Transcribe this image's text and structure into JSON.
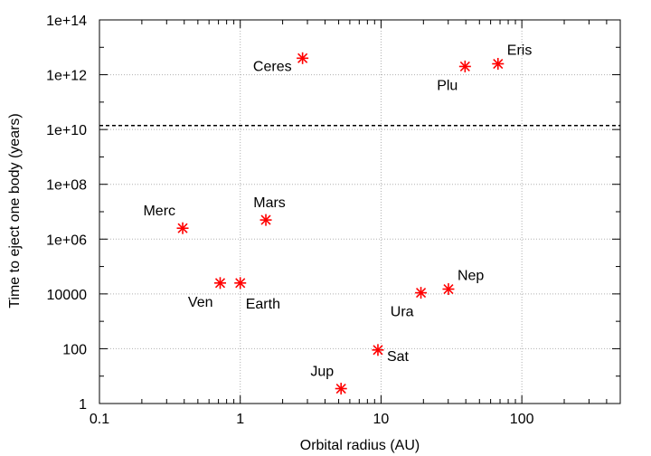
{
  "chart_data": {
    "type": "scatter",
    "title": "",
    "xlabel": "Orbital radius (AU)",
    "ylabel": "Time to eject one body (years)",
    "x_scale": "log",
    "y_scale": "log",
    "xlim": [
      0.1,
      500
    ],
    "ylim": [
      1,
      100000000000000.0
    ],
    "grid": true,
    "legend": "none",
    "x_ticks": [
      {
        "value": 0.1,
        "label": "0.1"
      },
      {
        "value": 1,
        "label": "1"
      },
      {
        "value": 10,
        "label": "10"
      },
      {
        "value": 100,
        "label": "100"
      }
    ],
    "y_ticks": [
      {
        "value": 1,
        "label": "1"
      },
      {
        "value": 100,
        "label": "100"
      },
      {
        "value": 10000,
        "label": "10000"
      },
      {
        "value": 1000000.0,
        "label": "1e+06"
      },
      {
        "value": 100000000.0,
        "label": "1e+08"
      },
      {
        "value": 10000000000.0,
        "label": "1e+10"
      },
      {
        "value": 1000000000000.0,
        "label": "1e+12"
      },
      {
        "value": 100000000000000.0,
        "label": "1e+14"
      }
    ],
    "reference_line": {
      "y": 14000000000.0,
      "style": "dashed",
      "color": "#000000"
    },
    "point_color": "#ff0000",
    "series": [
      {
        "points": [
          {
            "label": "Merc",
            "x": 0.39,
            "y": 2500000.0,
            "label_pos": "upper-left"
          },
          {
            "label": "Ven",
            "x": 0.72,
            "y": 25000.0,
            "label_pos": "lower-left"
          },
          {
            "label": "Earth",
            "x": 1.0,
            "y": 25000.0,
            "label_pos": "lower-right"
          },
          {
            "label": "Mars",
            "x": 1.52,
            "y": 5000000.0,
            "label_pos": "above"
          },
          {
            "label": "Ceres",
            "x": 2.77,
            "y": 4000000000000.0,
            "label_pos": "left"
          },
          {
            "label": "Jup",
            "x": 5.2,
            "y": 3.5,
            "label_pos": "upper-left"
          },
          {
            "label": "Sat",
            "x": 9.5,
            "y": 90,
            "label_pos": "right"
          },
          {
            "label": "Ura",
            "x": 19.2,
            "y": 11000.0,
            "label_pos": "lower-left"
          },
          {
            "label": "Nep",
            "x": 30.1,
            "y": 15000.0,
            "label_pos": "upper-right"
          },
          {
            "label": "Plu",
            "x": 39.5,
            "y": 2000000000000.0,
            "label_pos": "lower-left"
          },
          {
            "label": "Eris",
            "x": 67.7,
            "y": 2500000000000.0,
            "label_pos": "upper-right"
          }
        ]
      }
    ]
  }
}
